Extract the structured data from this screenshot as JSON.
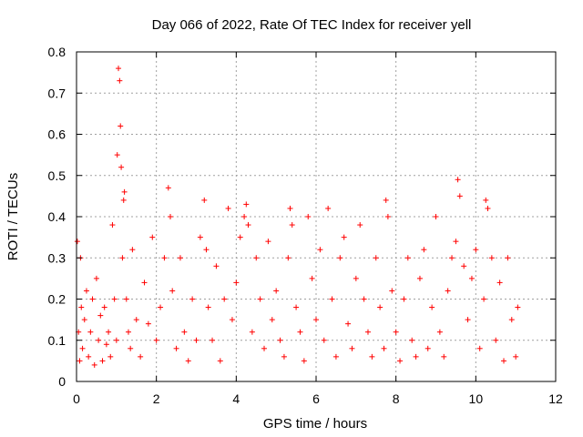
{
  "chart_data": {
    "type": "scatter",
    "title": "Day 066 of 2022, Rate Of TEC Index for receiver yell",
    "xlabel": "GPS time / hours",
    "ylabel": "ROTI / TECUs",
    "xlim": [
      0,
      12
    ],
    "ylim": [
      0,
      0.8
    ],
    "x_ticks": [
      "0",
      "2",
      "4",
      "6",
      "8",
      "10",
      "12"
    ],
    "y_ticks": [
      "0",
      "0.1",
      "0.2",
      "0.3",
      "0.4",
      "0.5",
      "0.6",
      "0.7",
      "0.8"
    ],
    "grid": true,
    "marker": "+",
    "color": "#ff0000",
    "series": [
      {
        "name": "ROTI",
        "x": [
          0.02,
          0.05,
          0.08,
          0.1,
          0.12,
          0.15,
          0.2,
          0.25,
          0.3,
          0.35,
          0.4,
          0.45,
          0.5,
          0.55,
          0.6,
          0.65,
          0.7,
          0.75,
          0.8,
          0.85,
          0.9,
          0.95,
          1.0,
          1.02,
          1.05,
          1.08,
          1.1,
          1.12,
          1.15,
          1.18,
          1.2,
          1.25,
          1.3,
          1.35,
          1.4,
          1.5,
          1.6,
          1.7,
          1.8,
          1.9,
          2.0,
          2.1,
          2.2,
          2.3,
          2.35,
          2.4,
          2.5,
          2.6,
          2.7,
          2.8,
          2.9,
          3.0,
          3.1,
          3.2,
          3.25,
          3.3,
          3.4,
          3.5,
          3.6,
          3.7,
          3.8,
          3.9,
          4.0,
          4.1,
          4.2,
          4.25,
          4.3,
          4.4,
          4.5,
          4.6,
          4.7,
          4.8,
          4.9,
          5.0,
          5.1,
          5.2,
          5.3,
          5.35,
          5.4,
          5.5,
          5.6,
          5.7,
          5.8,
          5.9,
          6.0,
          6.1,
          6.2,
          6.3,
          6.4,
          6.5,
          6.6,
          6.7,
          6.8,
          6.9,
          7.0,
          7.1,
          7.2,
          7.3,
          7.4,
          7.5,
          7.6,
          7.7,
          7.75,
          7.8,
          7.9,
          8.0,
          8.1,
          8.2,
          8.3,
          8.4,
          8.5,
          8.6,
          8.7,
          8.8,
          8.9,
          9.0,
          9.1,
          9.2,
          9.3,
          9.4,
          9.5,
          9.55,
          9.6,
          9.7,
          9.8,
          9.9,
          10.0,
          10.1,
          10.2,
          10.25,
          10.3,
          10.4,
          10.5,
          10.6,
          10.7,
          10.8,
          10.9,
          11.0,
          11.05
        ],
        "y": [
          0.34,
          0.12,
          0.05,
          0.3,
          0.18,
          0.08,
          0.15,
          0.22,
          0.06,
          0.12,
          0.2,
          0.04,
          0.25,
          0.1,
          0.16,
          0.05,
          0.18,
          0.09,
          0.12,
          0.06,
          0.38,
          0.2,
          0.1,
          0.55,
          0.76,
          0.73,
          0.62,
          0.52,
          0.3,
          0.44,
          0.46,
          0.2,
          0.12,
          0.08,
          0.32,
          0.15,
          0.06,
          0.24,
          0.14,
          0.35,
          0.1,
          0.18,
          0.3,
          0.47,
          0.4,
          0.22,
          0.08,
          0.3,
          0.12,
          0.05,
          0.2,
          0.1,
          0.35,
          0.44,
          0.32,
          0.18,
          0.1,
          0.28,
          0.05,
          0.2,
          0.42,
          0.15,
          0.24,
          0.35,
          0.4,
          0.43,
          0.38,
          0.12,
          0.3,
          0.2,
          0.08,
          0.34,
          0.15,
          0.22,
          0.1,
          0.06,
          0.3,
          0.42,
          0.38,
          0.18,
          0.12,
          0.05,
          0.4,
          0.25,
          0.15,
          0.32,
          0.1,
          0.42,
          0.2,
          0.06,
          0.3,
          0.35,
          0.14,
          0.08,
          0.25,
          0.38,
          0.2,
          0.12,
          0.06,
          0.3,
          0.18,
          0.08,
          0.44,
          0.4,
          0.22,
          0.12,
          0.05,
          0.2,
          0.3,
          0.1,
          0.06,
          0.25,
          0.32,
          0.08,
          0.18,
          0.4,
          0.12,
          0.06,
          0.22,
          0.3,
          0.34,
          0.49,
          0.45,
          0.28,
          0.15,
          0.25,
          0.32,
          0.08,
          0.2,
          0.44,
          0.42,
          0.3,
          0.1,
          0.24,
          0.05,
          0.3,
          0.15,
          0.06,
          0.18
        ]
      }
    ]
  }
}
